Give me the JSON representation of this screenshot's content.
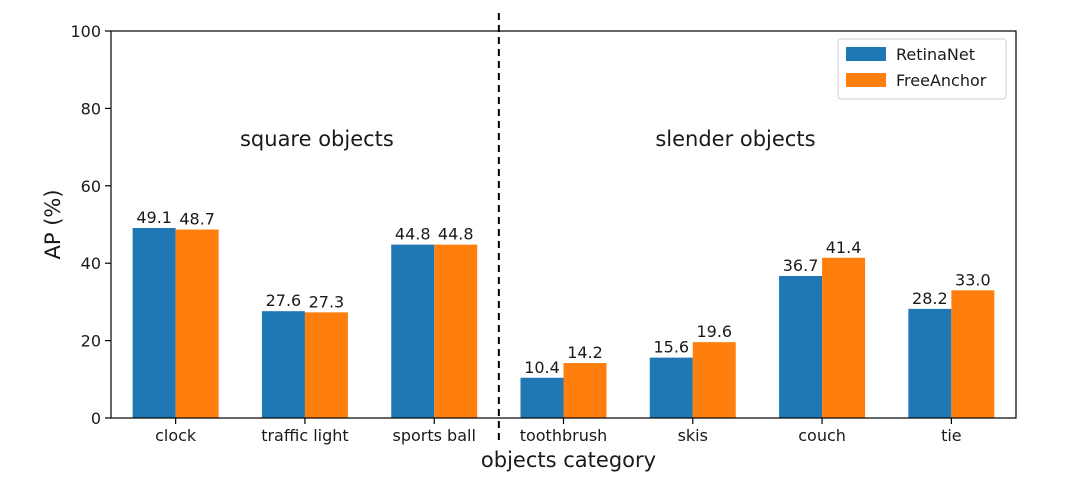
{
  "chart_data": {
    "type": "bar",
    "categories": [
      "clock",
      "traffic light",
      "sports ball",
      "toothbrush",
      "skis",
      "couch",
      "tie"
    ],
    "series": [
      {
        "name": "RetinaNet",
        "color": "#1f77b4",
        "values": [
          49.1,
          27.6,
          44.8,
          10.4,
          15.6,
          36.7,
          28.2
        ],
        "labels": [
          "49.1",
          "27.6",
          "44.8",
          "10.4",
          "15.6",
          "36.7",
          "28.2"
        ]
      },
      {
        "name": "FreeAnchor",
        "color": "#ff7f0e",
        "values": [
          48.7,
          27.3,
          44.8,
          14.2,
          19.6,
          41.4,
          33.0
        ],
        "labels": [
          "48.7",
          "27.3",
          "44.8",
          "14.2",
          "19.6",
          "41.4",
          "33.0"
        ]
      }
    ],
    "title": "",
    "xlabel": "objects category",
    "ylabel": "AP (%)",
    "ylim": [
      0,
      100
    ],
    "yticks": [
      0,
      20,
      40,
      60,
      80,
      100
    ],
    "legend": "top-right",
    "annotations": [
      {
        "text": "square objects",
        "group": "left"
      },
      {
        "text": "slender objects",
        "group": "right"
      }
    ],
    "divider_after_category": 2
  }
}
